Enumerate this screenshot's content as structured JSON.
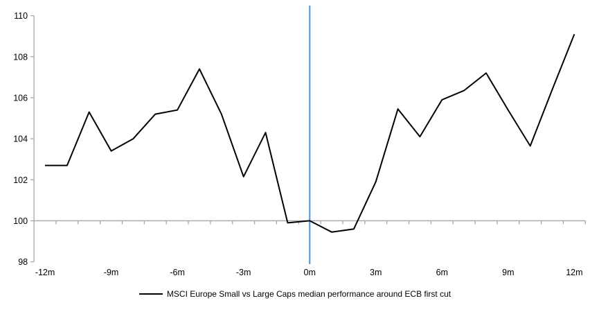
{
  "chart_data": {
    "type": "line",
    "title": "",
    "xlabel": "",
    "ylabel": "",
    "x_months": [
      -12,
      -11,
      -10,
      -9,
      -8,
      -7,
      -6,
      -5,
      -4,
      -3,
      -2,
      -1,
      0,
      1,
      2,
      3,
      4,
      5,
      6,
      7,
      8,
      9,
      10,
      11,
      12
    ],
    "series": [
      {
        "name": "MSCI Europe Small vs Large Caps median performance around ECB first cut",
        "color": "#000000",
        "values": [
          102.7,
          102.7,
          105.3,
          103.4,
          104.0,
          105.2,
          105.4,
          107.4,
          105.2,
          102.15,
          104.3,
          99.9,
          100.0,
          99.45,
          99.6,
          101.9,
          105.45,
          104.1,
          105.9,
          106.35,
          107.2,
          105.4,
          103.65,
          106.4,
          109.1
        ]
      }
    ],
    "ylim": [
      98,
      110
    ],
    "yticks": [
      110,
      108,
      106,
      104,
      102,
      100,
      98
    ],
    "xticks": [
      {
        "month": -12,
        "label": "-12m"
      },
      {
        "month": -9,
        "label": "-9m"
      },
      {
        "month": -6,
        "label": "-6m"
      },
      {
        "month": -3,
        "label": "-3m"
      },
      {
        "month": 0,
        "label": "0m"
      },
      {
        "month": 3,
        "label": "3m"
      },
      {
        "month": 6,
        "label": "6m"
      },
      {
        "month": 9,
        "label": "9m"
      },
      {
        "month": 12,
        "label": "12m"
      }
    ],
    "x_axis_cross_value": 100,
    "event_line": {
      "x_month": 0,
      "color": "#6FA0CE"
    },
    "grid": "off",
    "legend_position": "bottom-center"
  },
  "legend": {
    "label": "MSCI Europe Small vs Large Caps median performance around ECB first cut"
  },
  "colors": {
    "axis": "#A6A6A6",
    "text": "#000000",
    "background": "#FFFFFF",
    "series": "#000000",
    "event_line": "#6FA0CE"
  }
}
